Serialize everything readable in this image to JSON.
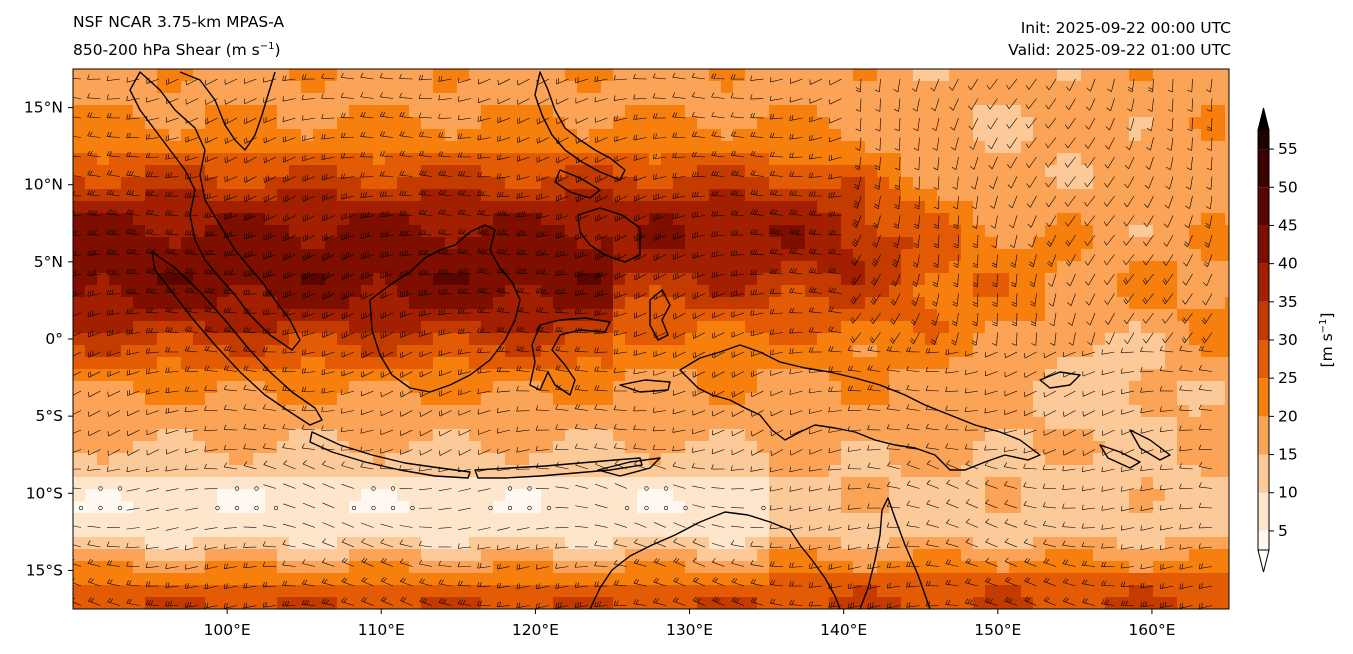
{
  "header": {
    "model": "NSF NCAR 3.75-km MPAS-A",
    "field_main": "850-200 hPa Shear (m s",
    "field_exp": "−1",
    "field_close": ")",
    "init": "Init: 2025-09-22 00:00 UTC",
    "valid": "Valid: 2025-09-22 01:00 UTC"
  },
  "map": {
    "lon_range": [
      90,
      165
    ],
    "lat_range": [
      -17.5,
      17.5
    ],
    "lon_ticks": [
      {
        "value": 100,
        "label": "100°E"
      },
      {
        "value": 110,
        "label": "110°E"
      },
      {
        "value": 120,
        "label": "120°E"
      },
      {
        "value": 130,
        "label": "130°E"
      },
      {
        "value": 140,
        "label": "140°E"
      },
      {
        "value": 150,
        "label": "150°E"
      },
      {
        "value": 160,
        "label": "160°E"
      }
    ],
    "lat_ticks": [
      {
        "value": 15,
        "label": "15°N"
      },
      {
        "value": 10,
        "label": "10°N"
      },
      {
        "value": 5,
        "label": "5°N"
      },
      {
        "value": 0,
        "label": "0°"
      },
      {
        "value": -5,
        "label": "5°S"
      },
      {
        "value": -10,
        "label": "10°S"
      },
      {
        "value": -15,
        "label": "15°S"
      }
    ]
  },
  "colorbar": {
    "unit_main": "[m s",
    "unit_exp": "−1",
    "unit_close": "]",
    "range": [
      2.5,
      57.5
    ],
    "ticks": [
      {
        "value": 5,
        "label": "5"
      },
      {
        "value": 10,
        "label": "10"
      },
      {
        "value": 15,
        "label": "15"
      },
      {
        "value": 20,
        "label": "20"
      },
      {
        "value": 25,
        "label": "25"
      },
      {
        "value": 30,
        "label": "30"
      },
      {
        "value": 35,
        "label": "35"
      },
      {
        "value": 40,
        "label": "40"
      },
      {
        "value": 45,
        "label": "45"
      },
      {
        "value": 50,
        "label": "50"
      },
      {
        "value": 55,
        "label": "55"
      }
    ],
    "colors": [
      "#fff8f0",
      "#fde6cc",
      "#fcc998",
      "#fba458",
      "#f77f0e",
      "#e35c05",
      "#c43b02",
      "#a21f01",
      "#7e0f00",
      "#5a0500",
      "#3a0200",
      "#1e0000"
    ]
  }
}
